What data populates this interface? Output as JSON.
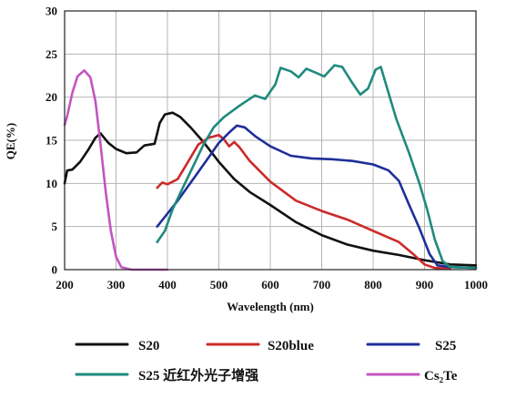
{
  "chart_data": {
    "type": "line",
    "title": "",
    "xlabel": "Wavelength (nm)",
    "ylabel": "QE(%)",
    "xlim": [
      200,
      1000
    ],
    "ylim": [
      0,
      30
    ],
    "x_ticks": [
      200,
      300,
      400,
      500,
      600,
      700,
      800,
      900,
      1000
    ],
    "y_ticks": [
      0,
      5,
      10,
      15,
      20,
      25,
      30
    ],
    "grid": true,
    "legend_position": "bottom",
    "series": [
      {
        "name": "S20",
        "color": "#111111",
        "points": [
          [
            200,
            10
          ],
          [
            205,
            11.5
          ],
          [
            215,
            11.6
          ],
          [
            230,
            12.5
          ],
          [
            245,
            13.8
          ],
          [
            260,
            15.3
          ],
          [
            270,
            15.8
          ],
          [
            285,
            14.7
          ],
          [
            300,
            14.0
          ],
          [
            320,
            13.5
          ],
          [
            340,
            13.6
          ],
          [
            355,
            14.4
          ],
          [
            375,
            14.6
          ],
          [
            385,
            17
          ],
          [
            395,
            18.0
          ],
          [
            410,
            18.2
          ],
          [
            425,
            17.7
          ],
          [
            445,
            16.5
          ],
          [
            470,
            14.8
          ],
          [
            500,
            12.5
          ],
          [
            530,
            10.5
          ],
          [
            560,
            9.0
          ],
          [
            600,
            7.5
          ],
          [
            650,
            5.5
          ],
          [
            700,
            4.0
          ],
          [
            750,
            2.9
          ],
          [
            800,
            2.2
          ],
          [
            850,
            1.7
          ],
          [
            900,
            1.1
          ],
          [
            950,
            0.6
          ],
          [
            1000,
            0.5
          ]
        ]
      },
      {
        "name": "S20blue",
        "color": "#cc2a2a",
        "points": [
          [
            380,
            9.5
          ],
          [
            390,
            10.1
          ],
          [
            400,
            9.9
          ],
          [
            420,
            10.5
          ],
          [
            440,
            12.5
          ],
          [
            460,
            14.5
          ],
          [
            480,
            15.3
          ],
          [
            500,
            15.6
          ],
          [
            510,
            15.1
          ],
          [
            520,
            14.3
          ],
          [
            530,
            14.8
          ],
          [
            540,
            14.2
          ],
          [
            560,
            12.6
          ],
          [
            600,
            10.2
          ],
          [
            650,
            8.0
          ],
          [
            700,
            6.8
          ],
          [
            750,
            5.8
          ],
          [
            800,
            4.5
          ],
          [
            850,
            3.2
          ],
          [
            880,
            1.7
          ],
          [
            900,
            0.6
          ],
          [
            920,
            0.2
          ],
          [
            950,
            0.1
          ]
        ]
      },
      {
        "name": "S25",
        "color": "#1e2f9a",
        "points": [
          [
            380,
            5.0
          ],
          [
            400,
            6.5
          ],
          [
            420,
            8.0
          ],
          [
            450,
            10.5
          ],
          [
            480,
            13.0
          ],
          [
            500,
            14.7
          ],
          [
            520,
            15.9
          ],
          [
            535,
            16.7
          ],
          [
            550,
            16.5
          ],
          [
            570,
            15.5
          ],
          [
            600,
            14.3
          ],
          [
            640,
            13.2
          ],
          [
            680,
            12.9
          ],
          [
            720,
            12.8
          ],
          [
            760,
            12.6
          ],
          [
            800,
            12.2
          ],
          [
            830,
            11.5
          ],
          [
            850,
            10.3
          ],
          [
            870,
            7.5
          ],
          [
            890,
            4.8
          ],
          [
            910,
            1.8
          ],
          [
            925,
            0.5
          ],
          [
            950,
            0.3
          ],
          [
            1000,
            0.2
          ]
        ]
      },
      {
        "name": "S25 近红外光子增强",
        "color": "#1e8a7e",
        "points": [
          [
            380,
            3.2
          ],
          [
            395,
            4.5
          ],
          [
            410,
            7.0
          ],
          [
            430,
            9.5
          ],
          [
            450,
            12.0
          ],
          [
            470,
            14.5
          ],
          [
            490,
            16.5
          ],
          [
            510,
            17.7
          ],
          [
            540,
            19.0
          ],
          [
            570,
            20.2
          ],
          [
            590,
            19.8
          ],
          [
            610,
            21.5
          ],
          [
            620,
            23.4
          ],
          [
            640,
            23.0
          ],
          [
            655,
            22.3
          ],
          [
            670,
            23.3
          ],
          [
            690,
            22.8
          ],
          [
            705,
            22.4
          ],
          [
            725,
            23.7
          ],
          [
            740,
            23.5
          ],
          [
            760,
            21.6
          ],
          [
            775,
            20.3
          ],
          [
            790,
            21.0
          ],
          [
            805,
            23.2
          ],
          [
            815,
            23.5
          ],
          [
            825,
            21.5
          ],
          [
            845,
            17.5
          ],
          [
            870,
            13.5
          ],
          [
            890,
            10.0
          ],
          [
            905,
            7.0
          ],
          [
            920,
            3.5
          ],
          [
            935,
            1.0
          ],
          [
            950,
            0.3
          ],
          [
            1000,
            0.2
          ]
        ]
      },
      {
        "name": "Cs₂Te",
        "color": "#c454c2",
        "points": [
          [
            200,
            16.8
          ],
          [
            205,
            17.8
          ],
          [
            215,
            20.5
          ],
          [
            225,
            22.4
          ],
          [
            238,
            23.1
          ],
          [
            250,
            22.3
          ],
          [
            260,
            19.5
          ],
          [
            270,
            14.5
          ],
          [
            280,
            9.0
          ],
          [
            290,
            4.5
          ],
          [
            300,
            1.5
          ],
          [
            310,
            0.3
          ],
          [
            330,
            0
          ],
          [
            400,
            0
          ]
        ]
      }
    ]
  },
  "legend": [
    {
      "label": "S20",
      "color": "#111111"
    },
    {
      "label": "S20blue",
      "color": "#cc2a2a"
    },
    {
      "label": "S25",
      "color": "#1e2f9a"
    },
    {
      "label": "S25 近红外光子增强",
      "color": "#1e8a7e"
    },
    {
      "label": "Cs₂Te",
      "color": "#c454c2"
    }
  ]
}
